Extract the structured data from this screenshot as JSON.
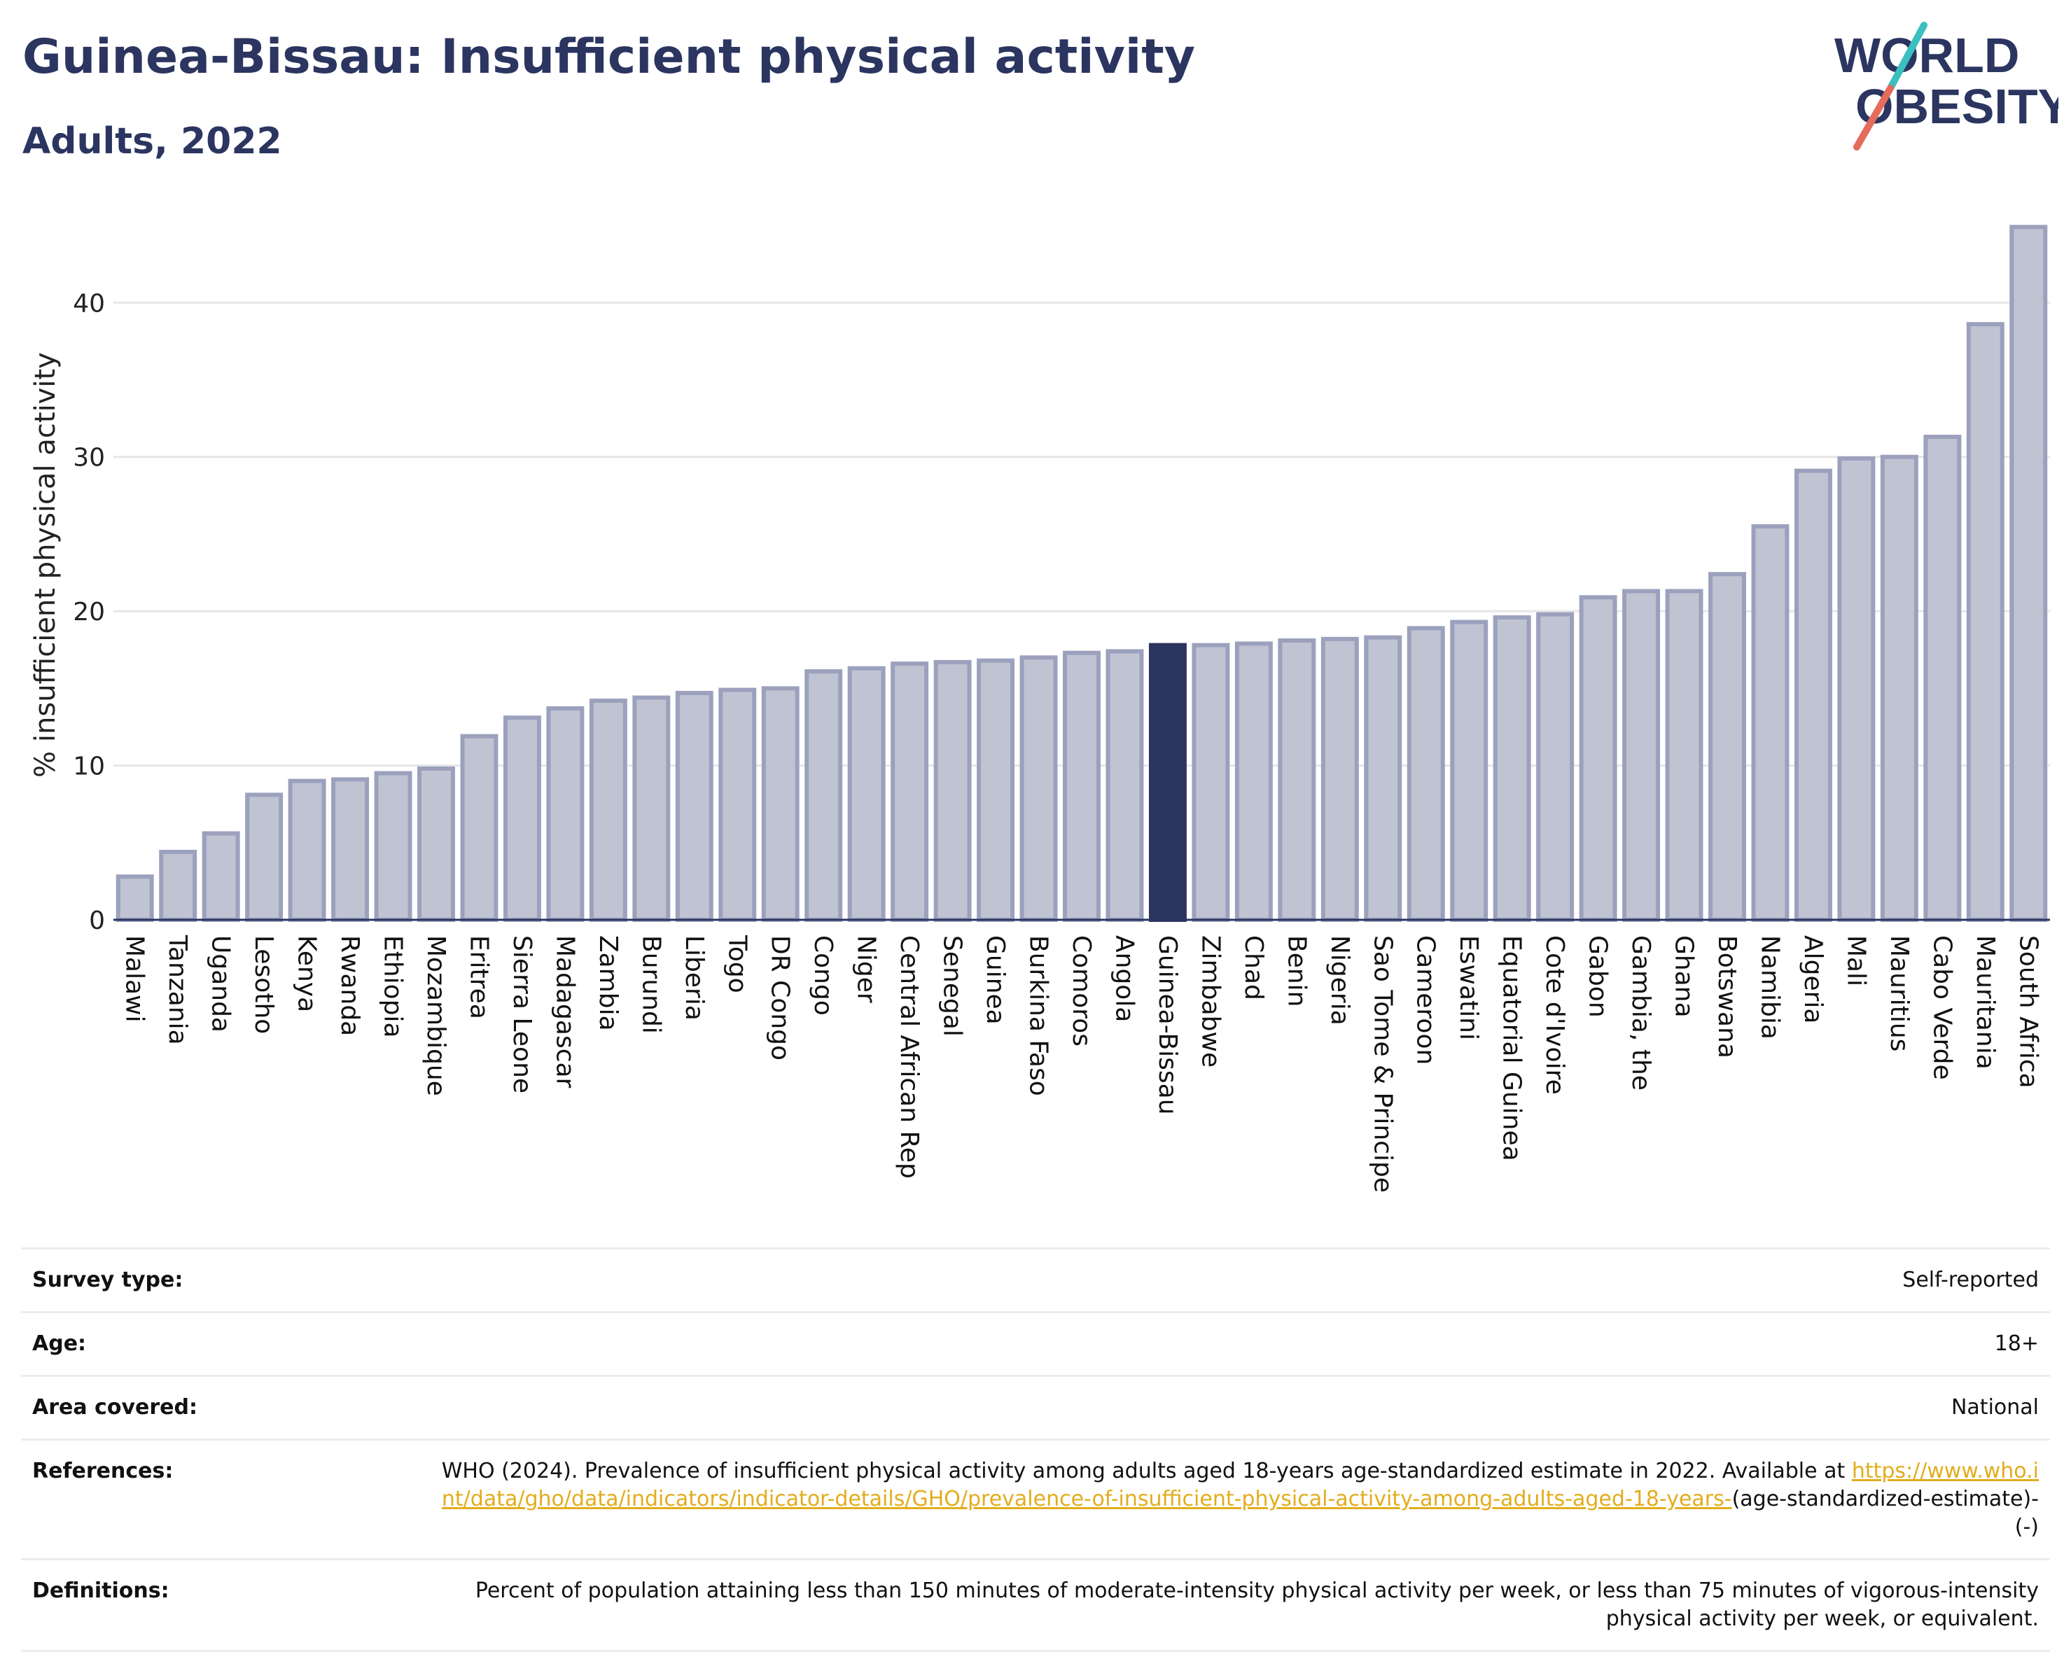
{
  "header": {
    "title": "Guinea-Bissau: Insufficient physical activity",
    "subtitle": "Adults, 2022"
  },
  "logo": {
    "line1": "WORLD",
    "line2": "OBESITY",
    "slash_colors": [
      "#3bbfbf",
      "#e56b5d"
    ],
    "text_color": "#2b3560"
  },
  "colors": {
    "bar": "#bfc3d2",
    "bar_stroke": "#9ba1bd",
    "highlight": "#2b3560",
    "grid": "#e6e6e6",
    "axis": "#2b3560",
    "link": "#e2ad1d"
  },
  "chart_data": {
    "type": "bar",
    "ylabel": "% insufficient physical activity",
    "ylim": [
      0,
      46
    ],
    "yticks": [
      0,
      10,
      20,
      30,
      40
    ],
    "grid": true,
    "highlight": "Guinea-Bissau",
    "categories": [
      "Malawi",
      "Tanzania",
      "Uganda",
      "Lesotho",
      "Kenya",
      "Rwanda",
      "Ethiopia",
      "Mozambique",
      "Eritrea",
      "Sierra Leone",
      "Madagascar",
      "Zambia",
      "Burundi",
      "Liberia",
      "Togo",
      "DR Congo",
      "Congo",
      "Niger",
      "Central African Rep",
      "Senegal",
      "Guinea",
      "Burkina Faso",
      "Comoros",
      "Angola",
      "Guinea-Bissau",
      "Zimbabwe",
      "Chad",
      "Benin",
      "Nigeria",
      "Sao Tome & Principe",
      "Cameroon",
      "Eswatini",
      "Equatorial Guinea",
      "Cote d'Ivoire",
      "Gabon",
      "Gambia, the",
      "Ghana",
      "Botswana",
      "Namibia",
      "Algeria",
      "Mali",
      "Mauritius",
      "Cabo Verde",
      "Mauritania",
      "South Africa"
    ],
    "values": [
      2.8,
      4.4,
      5.6,
      8.1,
      9.0,
      9.1,
      9.5,
      9.8,
      11.9,
      13.1,
      13.7,
      14.2,
      14.4,
      14.7,
      14.9,
      15.0,
      16.1,
      16.3,
      16.6,
      16.7,
      16.8,
      17.0,
      17.3,
      17.4,
      17.8,
      17.8,
      17.9,
      18.1,
      18.2,
      18.3,
      18.9,
      19.3,
      19.6,
      19.8,
      20.9,
      21.3,
      21.3,
      22.4,
      25.5,
      29.1,
      29.9,
      30.0,
      31.3,
      38.6,
      44.9
    ]
  },
  "meta": {
    "survey_type": {
      "label": "Survey type:",
      "value": "Self-reported"
    },
    "age": {
      "label": "Age:",
      "value": "18+"
    },
    "area": {
      "label": "Area covered:",
      "value": "National"
    },
    "references": {
      "label": "References:",
      "text": "WHO (2024). Prevalence of insufficient physical activity among adults aged 18-years age-standardized estimate in 2022. Available at",
      "link": "https://www.who.int/data/gho/data/indicators/indicator-details/GHO/prevalence-of-insufficient-physical-activity-among-adults-aged-18-years-",
      "suffix": "(age-standardized-estimate)-(-)"
    },
    "definitions": {
      "label": "Definitions:",
      "value": "Percent of population attaining less than 150 minutes of moderate-intensity physical activity per week, or less than 75 minutes of vigorous-intensity physical activity per week, or equivalent."
    }
  }
}
